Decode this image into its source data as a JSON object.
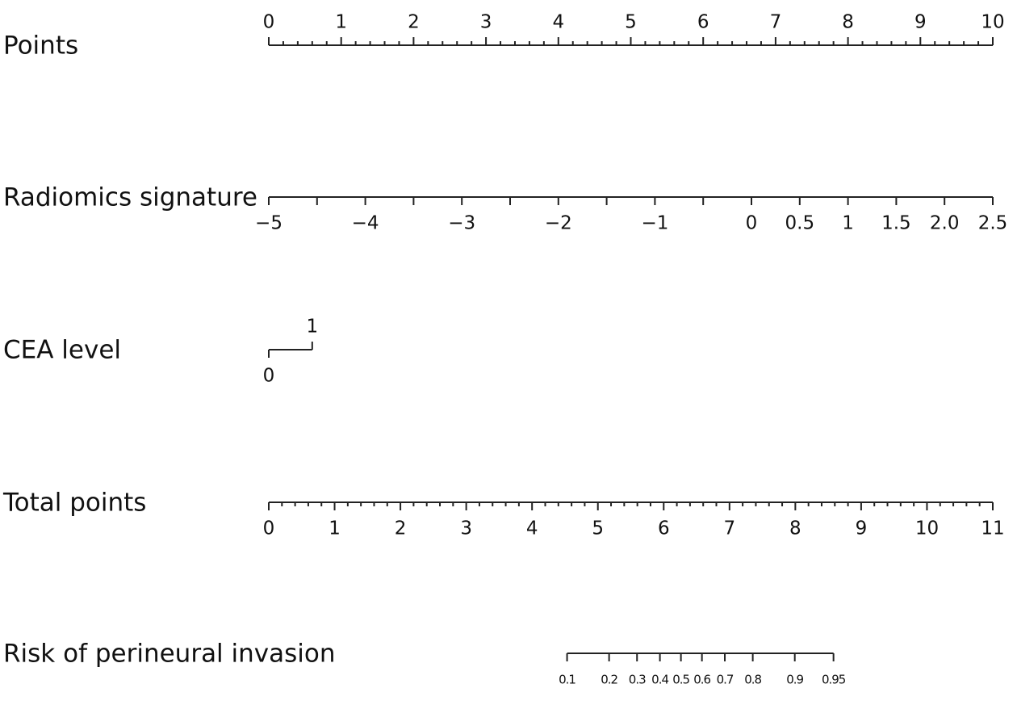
{
  "chart_data": {
    "type": "nomogram",
    "rows": [
      {
        "label": "Points",
        "lim": [
          0,
          10
        ],
        "points": [
          0,
          10
        ],
        "scale": "linear",
        "tick_labels": "above",
        "minor_step": 0.2,
        "ticks": [
          0,
          1,
          2,
          3,
          4,
          5,
          6,
          7,
          8,
          9,
          10
        ]
      },
      {
        "label": "Radiomics signature",
        "lim": [
          -5,
          2.5
        ],
        "points": [
          0,
          10
        ],
        "scale": "linear",
        "tick_labels": "below",
        "minor_step": 0.5,
        "ticks": [
          {
            "value": -5,
            "label": "−5"
          },
          {
            "value": -4,
            "label": "−4"
          },
          {
            "value": -3,
            "label": "−3"
          },
          {
            "value": -2,
            "label": "−2"
          },
          {
            "value": -1,
            "label": "−1"
          },
          0,
          0.5,
          1,
          1.5,
          {
            "value": 2,
            "label": "2.0"
          },
          2.5
        ]
      },
      {
        "label": "CEA level",
        "lim": [
          0,
          1
        ],
        "points": [
          0,
          0.6
        ],
        "scale": "linear",
        "tick_labels": "alternate",
        "ticks": [
          0,
          1
        ]
      },
      {
        "label": "Total points",
        "lim": [
          0,
          11
        ],
        "points": [
          0,
          10
        ],
        "scale": "linear",
        "tick_labels": "below",
        "minor_step": 0.2,
        "ticks": [
          0,
          1,
          2,
          3,
          4,
          5,
          6,
          7,
          8,
          9,
          10,
          11
        ]
      },
      {
        "label": "Risk of perineural invasion",
        "lim": [
          0.1,
          0.95
        ],
        "points": [
          4.12,
          7.8
        ],
        "scale": "logit",
        "tick_labels": "below",
        "small": true,
        "ticks": [
          0.1,
          0.2,
          0.3,
          0.4,
          0.5,
          0.6,
          0.7,
          0.8,
          0.9,
          0.95
        ]
      }
    ]
  }
}
